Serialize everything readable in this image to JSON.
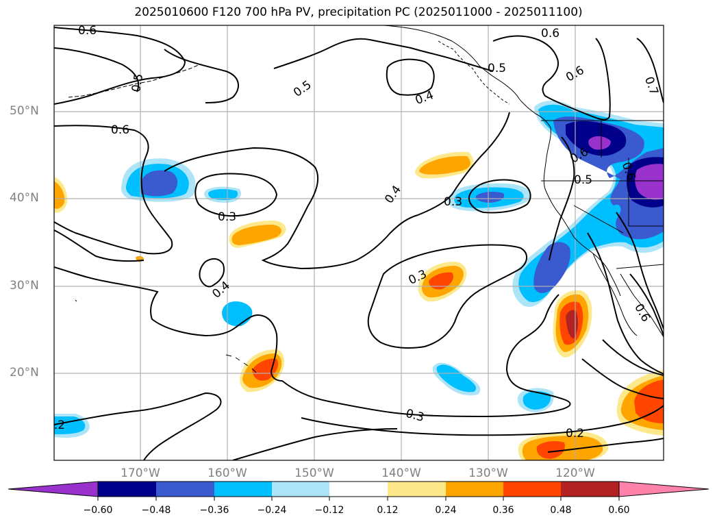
{
  "title": "2025010600 F120 700 hPa PV, precipitation PC (2025011000 - 2025011100)",
  "map": {
    "lon_labels": [
      "170°W",
      "160°W",
      "150°W",
      "140°W",
      "130°W",
      "120°W"
    ],
    "lat_labels": [
      "50°N",
      "40°N",
      "30°N",
      "20°N"
    ],
    "contour_labels": [
      "0.6",
      "0.6",
      "0.6",
      "0.5",
      "0.4",
      "0.5",
      "0.5",
      "0.6",
      "0.7",
      "0.6",
      "0.5",
      "0.6",
      "0.4",
      "0.3",
      "0.3",
      "0.4",
      "0.3",
      "0.3",
      "0.6",
      "0.2",
      "0.2"
    ]
  },
  "colorbar": {
    "ticks": [
      "−0.60",
      "−0.48",
      "−0.36",
      "−0.24",
      "−0.12",
      "0.12",
      "0.24",
      "0.36",
      "0.48",
      "0.60"
    ],
    "colors": {
      "under": "#9932cc",
      "c1": "#00008b",
      "c2": "#3a5bd0",
      "c3": "#00bfff",
      "c4": "#aee4f8",
      "c5": "#ffffff",
      "c6": "#fde98c",
      "c7": "#ffa500",
      "c8": "#ff4500",
      "c9": "#b22222",
      "over": "#ff82ab"
    }
  }
}
